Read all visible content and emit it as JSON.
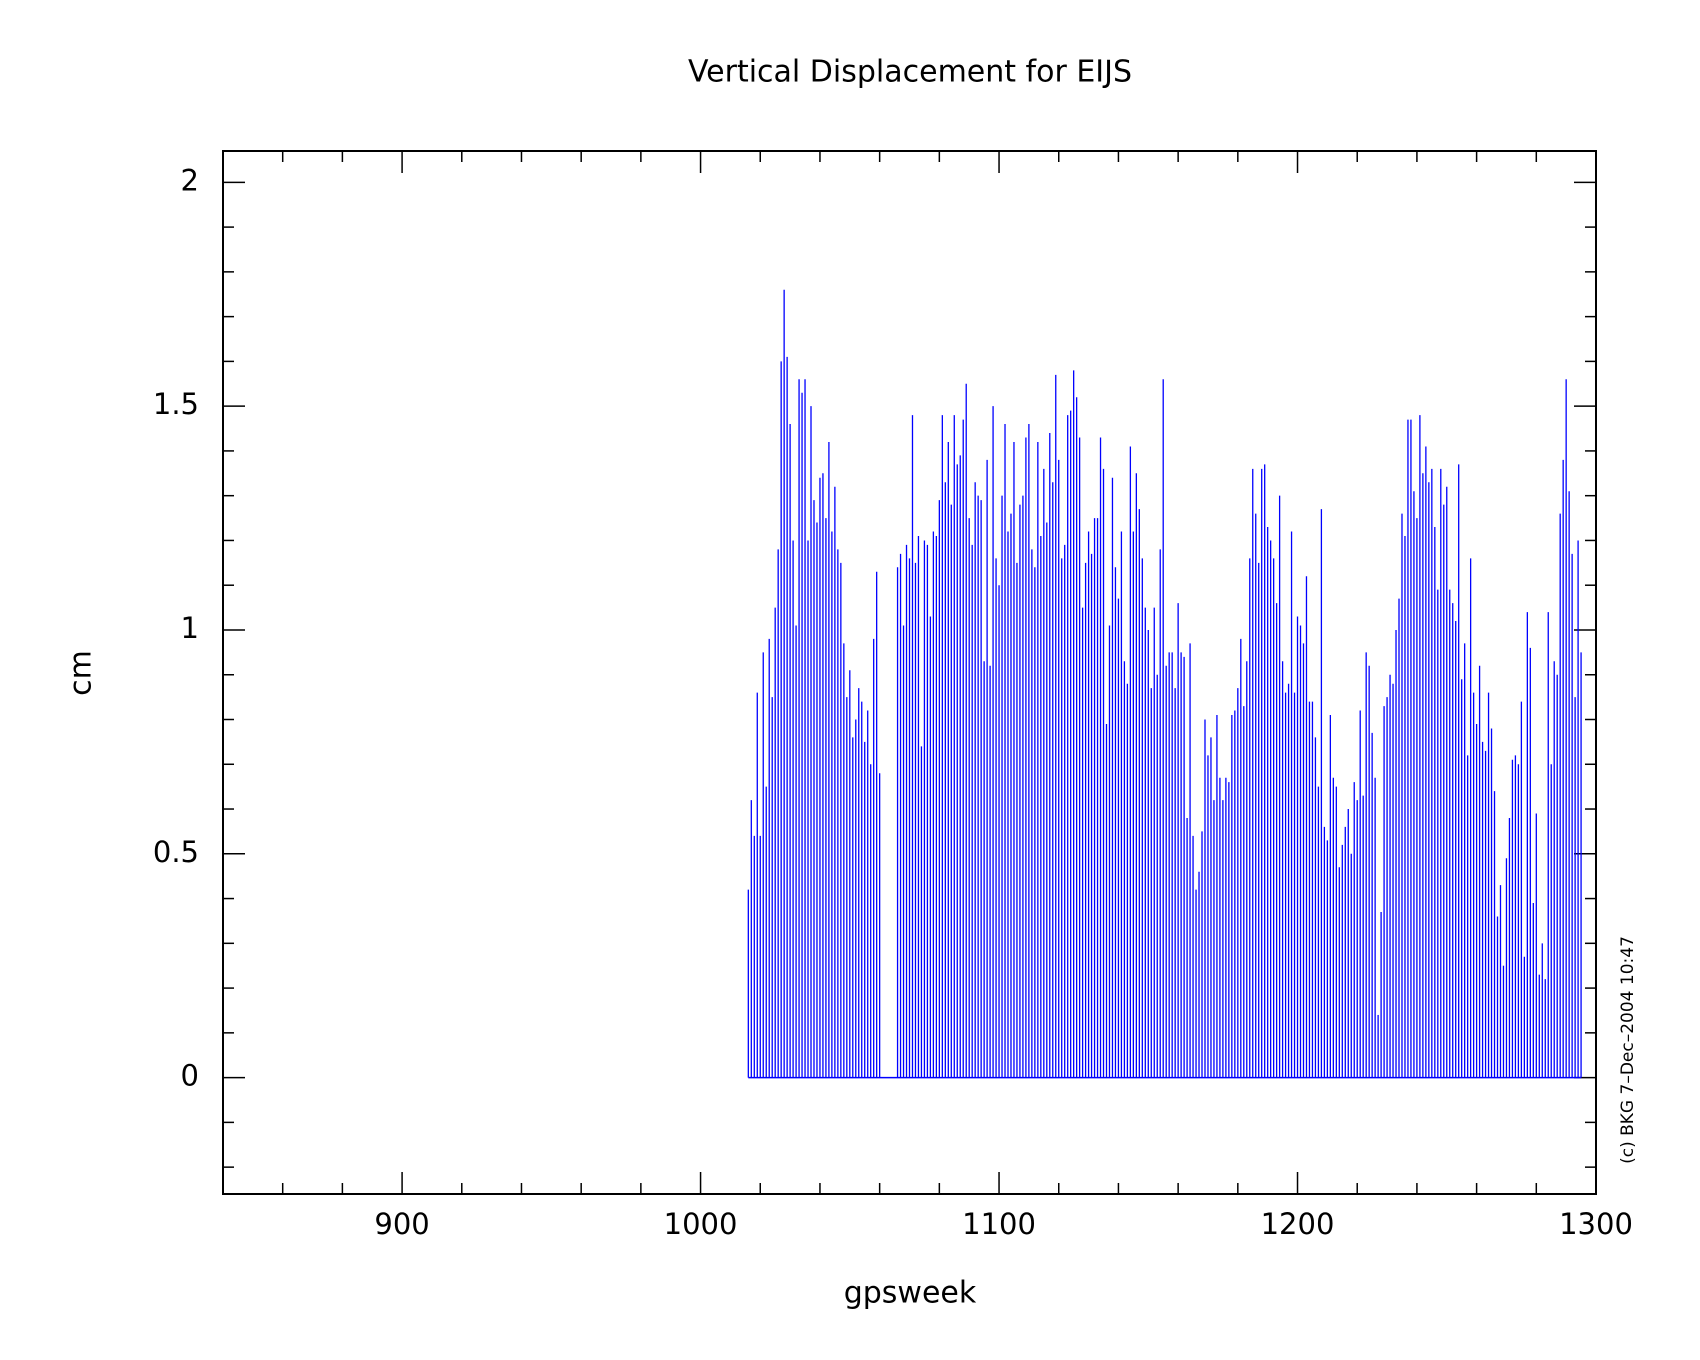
{
  "chart_data": {
    "type": "stem",
    "title": "Vertical Displacement for EIJS",
    "x_label": "gpsweek",
    "y_label": "cm",
    "footnote": "(c) BKG 7–Dec–2004 10:47",
    "color": "#0000ff",
    "xlim": [
      840,
      1300
    ],
    "xticks": [
      900,
      1000,
      1100,
      1200,
      1300
    ],
    "xminorticks": [
      860,
      880,
      920,
      940,
      960,
      980,
      1020,
      1040,
      1060,
      1080,
      1120,
      1140,
      1160,
      1180,
      1220,
      1240,
      1260,
      1280
    ],
    "ylim": [
      -0.26,
      2.07
    ],
    "yticks": [
      0,
      0.5,
      1,
      1.5,
      2
    ],
    "yminorticks": [
      -0.2,
      -0.1,
      0.1,
      0.2,
      0.3,
      0.4,
      0.6,
      0.7,
      0.8,
      0.9,
      1.1,
      1.2,
      1.3,
      1.4,
      1.6,
      1.7,
      1.8,
      1.9
    ],
    "x": [
      1016,
      1017,
      1018,
      1019,
      1020,
      1021,
      1022,
      1023,
      1024,
      1025,
      1026,
      1027,
      1028,
      1029,
      1030,
      1031,
      1032,
      1033,
      1034,
      1035,
      1036,
      1037,
      1038,
      1039,
      1040,
      1041,
      1042,
      1043,
      1044,
      1045,
      1046,
      1047,
      1048,
      1049,
      1050,
      1051,
      1052,
      1053,
      1054,
      1055,
      1056,
      1057,
      1058,
      1059,
      1060,
      1066,
      1067,
      1068,
      1069,
      1070,
      1071,
      1072,
      1073,
      1074,
      1075,
      1076,
      1077,
      1078,
      1079,
      1080,
      1081,
      1082,
      1083,
      1084,
      1085,
      1086,
      1087,
      1088,
      1089,
      1090,
      1091,
      1092,
      1093,
      1094,
      1095,
      1096,
      1097,
      1098,
      1099,
      1100,
      1101,
      1102,
      1103,
      1104,
      1105,
      1106,
      1107,
      1108,
      1109,
      1110,
      1111,
      1112,
      1113,
      1114,
      1115,
      1116,
      1117,
      1118,
      1119,
      1120,
      1121,
      1122,
      1123,
      1124,
      1125,
      1126,
      1127,
      1128,
      1129,
      1130,
      1131,
      1132,
      1133,
      1134,
      1135,
      1136,
      1137,
      1138,
      1139,
      1140,
      1141,
      1142,
      1143,
      1144,
      1145,
      1146,
      1147,
      1148,
      1149,
      1150,
      1151,
      1152,
      1153,
      1154,
      1155,
      1156,
      1157,
      1158,
      1159,
      1160,
      1161,
      1162,
      1163,
      1164,
      1165,
      1166,
      1167,
      1168,
      1169,
      1170,
      1171,
      1172,
      1173,
      1174,
      1175,
      1176,
      1177,
      1178,
      1179,
      1180,
      1181,
      1182,
      1183,
      1184,
      1185,
      1186,
      1187,
      1188,
      1189,
      1190,
      1191,
      1192,
      1193,
      1194,
      1195,
      1196,
      1197,
      1198,
      1199,
      1200,
      1201,
      1202,
      1203,
      1204,
      1205,
      1206,
      1207,
      1208,
      1209,
      1210,
      1211,
      1212,
      1213,
      1214,
      1215,
      1216,
      1217,
      1218,
      1219,
      1220,
      1221,
      1222,
      1223,
      1224,
      1225,
      1226,
      1227,
      1228,
      1229,
      1230,
      1231,
      1232,
      1233,
      1234,
      1235,
      1236,
      1237,
      1238,
      1239,
      1240,
      1241,
      1242,
      1243,
      1244,
      1245,
      1246,
      1247,
      1248,
      1249,
      1250,
      1251,
      1252,
      1253,
      1254,
      1255,
      1256,
      1257,
      1258,
      1259,
      1260,
      1261,
      1262,
      1263,
      1264,
      1265,
      1266,
      1267,
      1268,
      1269,
      1270,
      1271,
      1272,
      1273,
      1274,
      1275,
      1276,
      1277,
      1278,
      1279,
      1280,
      1281,
      1282,
      1283,
      1284,
      1285,
      1286,
      1287,
      1288,
      1289,
      1290,
      1291,
      1292,
      1293,
      1294,
      1295
    ],
    "values": [
      0.42,
      0.62,
      0.54,
      0.86,
      0.54,
      0.95,
      0.65,
      0.98,
      0.85,
      1.05,
      1.18,
      1.6,
      1.76,
      1.61,
      1.46,
      1.2,
      1.01,
      1.56,
      1.53,
      1.56,
      1.2,
      1.5,
      1.29,
      1.24,
      1.34,
      1.35,
      1.25,
      1.42,
      1.22,
      1.32,
      1.18,
      1.15,
      0.97,
      0.85,
      0.91,
      0.76,
      0.8,
      0.87,
      0.84,
      0.75,
      0.82,
      0.7,
      0.98,
      1.13,
      0.68,
      1.14,
      1.17,
      1.01,
      1.19,
      1.16,
      1.48,
      1.15,
      1.21,
      0.74,
      1.2,
      1.19,
      1.03,
      1.22,
      1.21,
      1.29,
      1.48,
      1.33,
      1.42,
      1.28,
      1.48,
      1.37,
      1.39,
      1.47,
      1.55,
      1.25,
      1.19,
      1.33,
      1.3,
      1.29,
      0.93,
      1.38,
      0.92,
      1.5,
      1.16,
      1.1,
      1.3,
      1.46,
      1.22,
      1.26,
      1.42,
      1.15,
      1.28,
      1.3,
      1.43,
      1.46,
      1.18,
      1.14,
      1.42,
      1.21,
      1.36,
      1.24,
      1.44,
      1.33,
      1.57,
      1.38,
      1.16,
      1.19,
      1.48,
      1.49,
      1.58,
      1.52,
      1.43,
      1.05,
      1.15,
      1.22,
      1.17,
      1.25,
      1.25,
      1.43,
      1.36,
      0.79,
      1.01,
      1.34,
      1.14,
      1.07,
      1.22,
      0.93,
      0.88,
      1.41,
      1.22,
      1.35,
      1.27,
      1.16,
      1.05,
      1.0,
      0.87,
      1.05,
      0.9,
      1.18,
      1.56,
      0.92,
      0.95,
      0.95,
      0.87,
      1.06,
      0.95,
      0.94,
      0.58,
      0.97,
      0.54,
      0.42,
      0.46,
      0.55,
      0.8,
      0.72,
      0.76,
      0.62,
      0.81,
      0.67,
      0.62,
      0.67,
      0.66,
      0.81,
      0.82,
      0.87,
      0.98,
      0.83,
      0.93,
      1.16,
      1.36,
      1.26,
      1.15,
      1.36,
      1.37,
      1.23,
      1.2,
      1.16,
      1.06,
      1.3,
      0.93,
      0.86,
      0.88,
      1.22,
      0.86,
      1.03,
      1.01,
      0.97,
      1.12,
      0.84,
      0.84,
      0.76,
      0.65,
      1.27,
      0.56,
      0.53,
      0.81,
      0.67,
      0.65,
      0.47,
      0.52,
      0.56,
      0.6,
      0.5,
      0.66,
      0.62,
      0.82,
      0.63,
      0.95,
      0.92,
      0.77,
      0.67,
      0.14,
      0.37,
      0.83,
      0.85,
      0.9,
      0.88,
      1.0,
      1.07,
      1.26,
      1.21,
      1.47,
      1.47,
      1.31,
      1.25,
      1.48,
      1.35,
      1.41,
      1.33,
      1.36,
      1.23,
      1.09,
      1.36,
      1.28,
      1.32,
      1.09,
      1.06,
      1.02,
      1.37,
      0.89,
      0.97,
      0.72,
      1.16,
      0.86,
      0.79,
      0.92,
      0.75,
      0.73,
      0.86,
      0.78,
      0.64,
      0.36,
      0.43,
      0.25,
      0.49,
      0.58,
      0.71,
      0.72,
      0.7,
      0.84,
      0.27,
      1.04,
      0.96,
      0.39,
      0.59,
      0.23,
      0.3,
      0.22,
      1.04,
      0.7,
      0.93,
      0.9,
      1.26,
      1.38,
      1.56,
      1.31,
      1.17,
      0.85,
      1.2,
      0.95
    ]
  }
}
